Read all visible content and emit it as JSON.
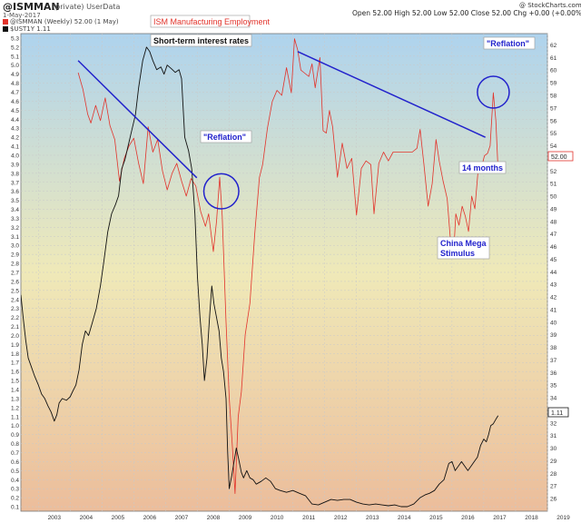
{
  "header": {
    "symbol": "@ISMMAN",
    "private": "(private) UserData",
    "date": "1-May-2017",
    "ohlc": "Open 52.00   High 52.00   Low 52.00   Close 52.00   Chg +0.00 (+0.00%)",
    "logo": "@ StockCharts.com",
    "legend1": "@ISMMAN (Weekly) 52.00 (1 May)",
    "legend2": "$UST1Y 1.11"
  },
  "colors": {
    "ism": "#e2332b",
    "rates": "#111111",
    "trend": "#2222cc",
    "grad_top": "#aed3ee",
    "grad_mid": "#efe9b8",
    "grad_bot": "#ecbd9b"
  },
  "annotations": {
    "ism_title": "ISM Manufacturing Employment",
    "rates_title": "Short-term interest rates",
    "reflation1": "\"Reflation\"",
    "reflation2": "\"Reflation\"",
    "fourteen": "14 months",
    "china_line1": "China Mega",
    "china_line2": "Stimulus"
  },
  "badges": {
    "ism_last": "52.00",
    "rates_last": "1.11"
  },
  "chart_data": {
    "type": "line",
    "x_ticks": [
      "2003",
      "2004",
      "2005",
      "2006",
      "2007",
      "2008",
      "2009",
      "2010",
      "2011",
      "2012",
      "2013",
      "2014",
      "2015",
      "2016",
      "2017",
      "2018",
      "2019"
    ],
    "xlim": [
      2002.45,
      2019.0
    ],
    "left_axis": {
      "ylim": [
        0.05,
        5.35
      ],
      "ticks": [
        0.1,
        0.2,
        0.3,
        0.4,
        0.5,
        0.6,
        0.7,
        0.8,
        0.9,
        1.0,
        1.1,
        1.2,
        1.3,
        1.4,
        1.5,
        1.6,
        1.7,
        1.8,
        1.9,
        2.0,
        2.1,
        2.2,
        2.3,
        2.4,
        2.5,
        2.6,
        2.7,
        2.8,
        2.9,
        3.0,
        3.1,
        3.2,
        3.3,
        3.4,
        3.5,
        3.6,
        3.7,
        3.8,
        3.9,
        4.0,
        4.1,
        4.2,
        4.3,
        4.4,
        4.5,
        4.6,
        4.7,
        4.8,
        4.9,
        5.0,
        5.1,
        5.2,
        5.3
      ]
    },
    "right_axis": {
      "ylim": [
        25.0,
        62.9
      ],
      "ticks": [
        26,
        27,
        28,
        29,
        30,
        31,
        32,
        33,
        34,
        35,
        36,
        37,
        38,
        39,
        40,
        41,
        42,
        43,
        44,
        45,
        46,
        47,
        48,
        49,
        50,
        51,
        52,
        53,
        54,
        55,
        56,
        57,
        58,
        59,
        60,
        61,
        62
      ]
    },
    "series": [
      {
        "name": "@ISMMAN",
        "axis": "right",
        "points": [
          [
            2004.25,
            59.8
          ],
          [
            2004.4,
            58.5
          ],
          [
            2004.55,
            56.5
          ],
          [
            2004.65,
            55.8
          ],
          [
            2004.8,
            57.2
          ],
          [
            2004.95,
            56.0
          ],
          [
            2005.1,
            57.8
          ],
          [
            2005.25,
            55.6
          ],
          [
            2005.4,
            54.5
          ],
          [
            2005.55,
            51.2
          ],
          [
            2005.7,
            53.0
          ],
          [
            2005.85,
            54.0
          ],
          [
            2006.0,
            54.6
          ],
          [
            2006.15,
            52.6
          ],
          [
            2006.3,
            51.0
          ],
          [
            2006.45,
            55.5
          ],
          [
            2006.6,
            53.5
          ],
          [
            2006.75,
            54.5
          ],
          [
            2006.9,
            52.0
          ],
          [
            2007.05,
            50.5
          ],
          [
            2007.2,
            51.8
          ],
          [
            2007.35,
            52.6
          ],
          [
            2007.5,
            51.2
          ],
          [
            2007.65,
            50.0
          ],
          [
            2007.8,
            51.4
          ],
          [
            2007.95,
            50.8
          ],
          [
            2008.1,
            48.8
          ],
          [
            2008.25,
            47.6
          ],
          [
            2008.35,
            48.6
          ],
          [
            2008.5,
            45.6
          ],
          [
            2008.6,
            48.0
          ],
          [
            2008.7,
            51.5
          ],
          [
            2008.78,
            48.4
          ],
          [
            2008.9,
            40.0
          ],
          [
            2009.0,
            34.0
          ],
          [
            2009.1,
            30.0
          ],
          [
            2009.18,
            26.4
          ],
          [
            2009.28,
            32.5
          ],
          [
            2009.38,
            34.5
          ],
          [
            2009.5,
            39.0
          ],
          [
            2009.65,
            41.5
          ],
          [
            2009.8,
            47.0
          ],
          [
            2009.95,
            51.5
          ],
          [
            2010.05,
            52.5
          ],
          [
            2010.2,
            55.4
          ],
          [
            2010.35,
            57.5
          ],
          [
            2010.5,
            58.4
          ],
          [
            2010.65,
            58.0
          ],
          [
            2010.8,
            60.2
          ],
          [
            2010.95,
            58.2
          ],
          [
            2011.05,
            62.5
          ],
          [
            2011.15,
            61.6
          ],
          [
            2011.25,
            60.0
          ],
          [
            2011.35,
            59.8
          ],
          [
            2011.5,
            59.5
          ],
          [
            2011.6,
            60.5
          ],
          [
            2011.7,
            58.6
          ],
          [
            2011.85,
            61.0
          ],
          [
            2011.95,
            55.2
          ],
          [
            2012.05,
            55.0
          ],
          [
            2012.15,
            56.8
          ],
          [
            2012.25,
            55.5
          ],
          [
            2012.4,
            51.5
          ],
          [
            2012.55,
            54.2
          ],
          [
            2012.7,
            52.2
          ],
          [
            2012.85,
            53.0
          ],
          [
            2013.0,
            48.5
          ],
          [
            2013.15,
            52.2
          ],
          [
            2013.3,
            52.8
          ],
          [
            2013.45,
            52.5
          ],
          [
            2013.55,
            48.6
          ],
          [
            2013.7,
            52.6
          ],
          [
            2013.85,
            53.5
          ],
          [
            2014.0,
            52.8
          ],
          [
            2014.15,
            53.5
          ],
          [
            2014.3,
            53.5
          ],
          [
            2014.45,
            53.5
          ],
          [
            2014.6,
            53.5
          ],
          [
            2014.75,
            53.5
          ],
          [
            2014.9,
            53.8
          ],
          [
            2015.0,
            55.3
          ],
          [
            2015.12,
            52.5
          ],
          [
            2015.25,
            49.2
          ],
          [
            2015.38,
            51.0
          ],
          [
            2015.5,
            54.5
          ],
          [
            2015.6,
            52.8
          ],
          [
            2015.72,
            51.2
          ],
          [
            2015.85,
            49.8
          ],
          [
            2015.95,
            46.6
          ],
          [
            2016.05,
            45.3
          ],
          [
            2016.12,
            48.6
          ],
          [
            2016.22,
            47.7
          ],
          [
            2016.32,
            49.2
          ],
          [
            2016.42,
            48.4
          ],
          [
            2016.52,
            47.2
          ],
          [
            2016.62,
            50.0
          ],
          [
            2016.72,
            49.0
          ],
          [
            2016.82,
            52.0
          ],
          [
            2016.92,
            52.2
          ],
          [
            2017.02,
            53.2
          ],
          [
            2017.12,
            53.4
          ],
          [
            2017.2,
            54.0
          ],
          [
            2017.3,
            58.2
          ],
          [
            2017.38,
            56.0
          ],
          [
            2017.45,
            52.0
          ]
        ]
      },
      {
        "name": "$UST1Y",
        "axis": "left",
        "points": [
          [
            2002.45,
            2.45
          ],
          [
            2002.52,
            2.2
          ],
          [
            2002.6,
            1.95
          ],
          [
            2002.68,
            1.75
          ],
          [
            2002.78,
            1.65
          ],
          [
            2002.88,
            1.55
          ],
          [
            2003.0,
            1.45
          ],
          [
            2003.1,
            1.35
          ],
          [
            2003.2,
            1.3
          ],
          [
            2003.3,
            1.22
          ],
          [
            2003.4,
            1.15
          ],
          [
            2003.5,
            1.05
          ],
          [
            2003.58,
            1.12
          ],
          [
            2003.65,
            1.25
          ],
          [
            2003.75,
            1.3
          ],
          [
            2003.88,
            1.28
          ],
          [
            2004.0,
            1.32
          ],
          [
            2004.08,
            1.38
          ],
          [
            2004.18,
            1.45
          ],
          [
            2004.28,
            1.62
          ],
          [
            2004.38,
            1.9
          ],
          [
            2004.48,
            2.05
          ],
          [
            2004.58,
            2.0
          ],
          [
            2004.7,
            2.15
          ],
          [
            2004.82,
            2.3
          ],
          [
            2004.95,
            2.55
          ],
          [
            2005.05,
            2.8
          ],
          [
            2005.18,
            3.15
          ],
          [
            2005.3,
            3.35
          ],
          [
            2005.42,
            3.45
          ],
          [
            2005.52,
            3.55
          ],
          [
            2005.62,
            3.85
          ],
          [
            2005.72,
            3.95
          ],
          [
            2005.85,
            4.15
          ],
          [
            2005.95,
            4.3
          ],
          [
            2006.05,
            4.45
          ],
          [
            2006.15,
            4.75
          ],
          [
            2006.28,
            5.05
          ],
          [
            2006.4,
            5.2
          ],
          [
            2006.5,
            5.15
          ],
          [
            2006.6,
            5.05
          ],
          [
            2006.72,
            4.95
          ],
          [
            2006.85,
            4.98
          ],
          [
            2006.95,
            4.9
          ],
          [
            2007.05,
            5.0
          ],
          [
            2007.18,
            4.96
          ],
          [
            2007.3,
            4.92
          ],
          [
            2007.42,
            4.95
          ],
          [
            2007.5,
            4.85
          ],
          [
            2007.6,
            4.2
          ],
          [
            2007.72,
            4.05
          ],
          [
            2007.82,
            3.85
          ],
          [
            2007.92,
            3.35
          ],
          [
            2008.0,
            2.65
          ],
          [
            2008.08,
            2.2
          ],
          [
            2008.15,
            1.9
          ],
          [
            2008.22,
            1.5
          ],
          [
            2008.3,
            1.75
          ],
          [
            2008.38,
            2.2
          ],
          [
            2008.45,
            2.55
          ],
          [
            2008.52,
            2.35
          ],
          [
            2008.6,
            2.2
          ],
          [
            2008.68,
            2.05
          ],
          [
            2008.75,
            1.75
          ],
          [
            2008.82,
            1.6
          ],
          [
            2008.9,
            1.3
          ],
          [
            2008.95,
            0.7
          ],
          [
            2009.0,
            0.3
          ],
          [
            2009.08,
            0.45
          ],
          [
            2009.15,
            0.6
          ],
          [
            2009.22,
            0.75
          ],
          [
            2009.3,
            0.62
          ],
          [
            2009.38,
            0.48
          ],
          [
            2009.45,
            0.42
          ],
          [
            2009.55,
            0.5
          ],
          [
            2009.65,
            0.42
          ],
          [
            2009.75,
            0.4
          ],
          [
            2009.85,
            0.35
          ],
          [
            2010.0,
            0.38
          ],
          [
            2010.15,
            0.42
          ],
          [
            2010.3,
            0.38
          ],
          [
            2010.45,
            0.3
          ],
          [
            2010.6,
            0.28
          ],
          [
            2010.8,
            0.26
          ],
          [
            2011.0,
            0.28
          ],
          [
            2011.2,
            0.25
          ],
          [
            2011.4,
            0.22
          ],
          [
            2011.6,
            0.13
          ],
          [
            2011.8,
            0.12
          ],
          [
            2012.0,
            0.15
          ],
          [
            2012.2,
            0.18
          ],
          [
            2012.4,
            0.17
          ],
          [
            2012.6,
            0.18
          ],
          [
            2012.8,
            0.18
          ],
          [
            2013.0,
            0.15
          ],
          [
            2013.2,
            0.13
          ],
          [
            2013.4,
            0.12
          ],
          [
            2013.6,
            0.13
          ],
          [
            2013.8,
            0.12
          ],
          [
            2014.0,
            0.11
          ],
          [
            2014.2,
            0.12
          ],
          [
            2014.4,
            0.1
          ],
          [
            2014.6,
            0.1
          ],
          [
            2014.8,
            0.13
          ],
          [
            2015.0,
            0.2
          ],
          [
            2015.15,
            0.23
          ],
          [
            2015.3,
            0.25
          ],
          [
            2015.45,
            0.28
          ],
          [
            2015.6,
            0.35
          ],
          [
            2015.75,
            0.4
          ],
          [
            2015.9,
            0.58
          ],
          [
            2016.0,
            0.6
          ],
          [
            2016.1,
            0.5
          ],
          [
            2016.2,
            0.55
          ],
          [
            2016.3,
            0.6
          ],
          [
            2016.4,
            0.55
          ],
          [
            2016.5,
            0.5
          ],
          [
            2016.6,
            0.55
          ],
          [
            2016.7,
            0.6
          ],
          [
            2016.8,
            0.65
          ],
          [
            2016.9,
            0.78
          ],
          [
            2017.0,
            0.85
          ],
          [
            2017.08,
            0.82
          ],
          [
            2017.15,
            0.9
          ],
          [
            2017.22,
            1.0
          ],
          [
            2017.3,
            1.02
          ],
          [
            2017.38,
            1.07
          ],
          [
            2017.45,
            1.11
          ]
        ]
      }
    ],
    "trendlines": [
      {
        "axis": "left",
        "from": [
          2004.25,
          5.05
        ],
        "to": [
          2007.98,
          3.75
        ]
      },
      {
        "axis": "left",
        "from": [
          2011.15,
          5.15
        ],
        "to": [
          2017.05,
          4.2
        ]
      }
    ],
    "circles": [
      {
        "axis": "left",
        "center": [
          2008.75,
          3.6
        ],
        "radius_years": 0.55
      },
      {
        "axis": "left",
        "center": [
          2017.3,
          4.7
        ],
        "radius_years": 0.5
      }
    ]
  }
}
